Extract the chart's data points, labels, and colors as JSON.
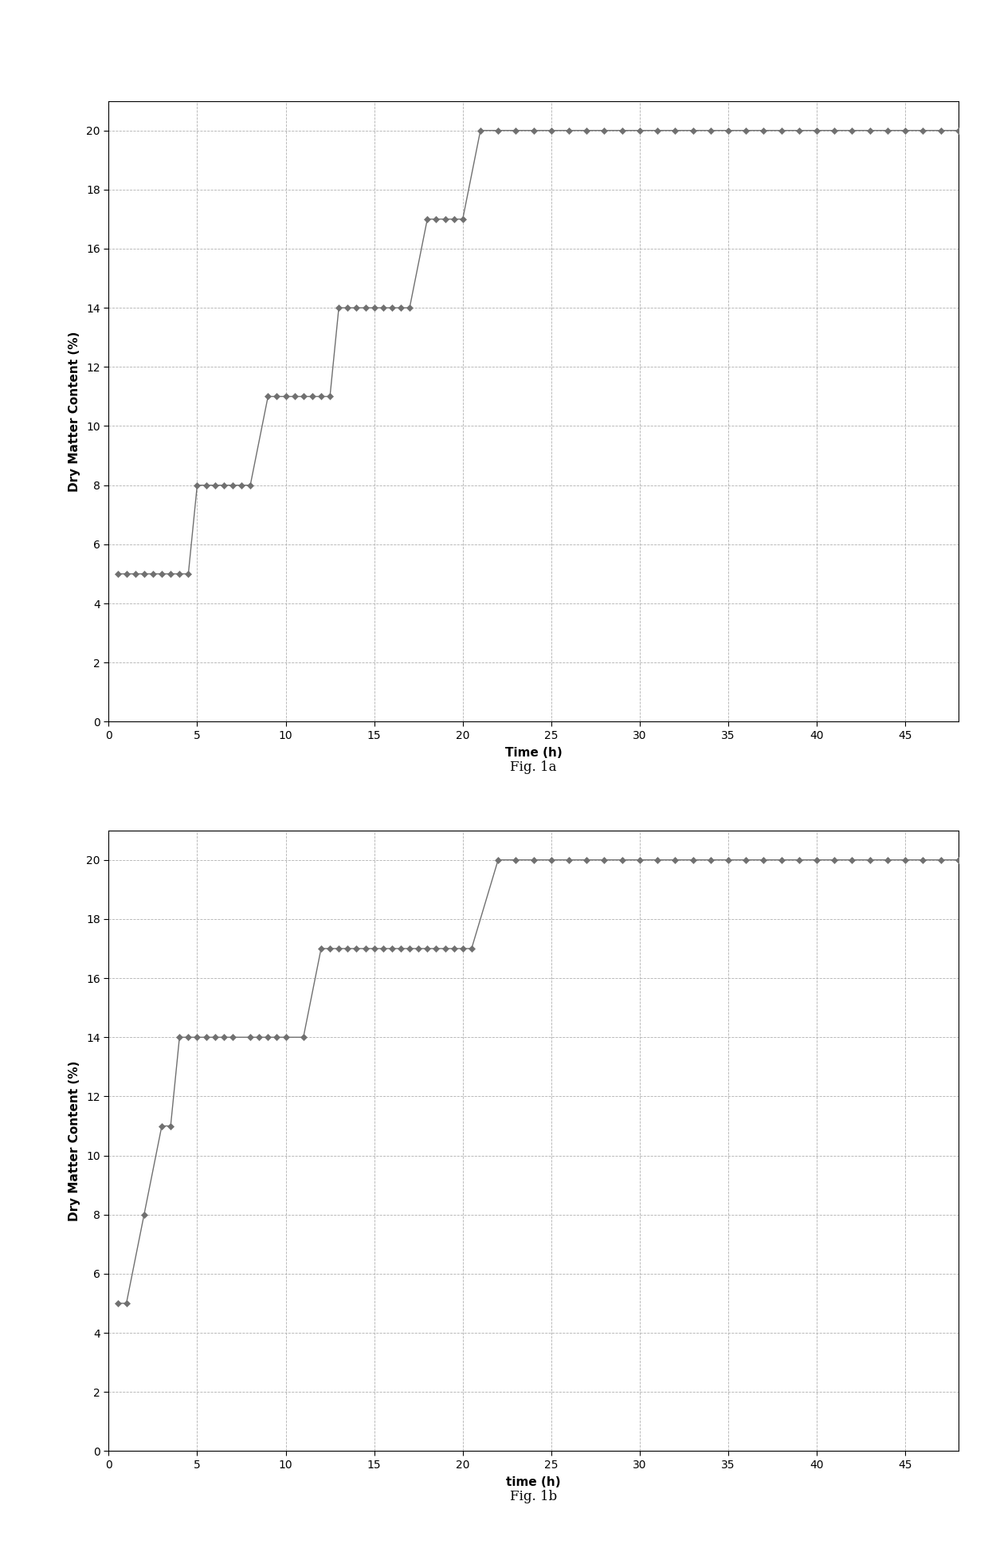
{
  "fig1a": {
    "title": "Fig. 1a",
    "xlabel": "Time (h)",
    "ylabel": "Dry Matter Content (%)",
    "xlim": [
      0,
      48
    ],
    "ylim": [
      0,
      21
    ],
    "yticks": [
      0,
      2,
      4,
      6,
      8,
      10,
      12,
      14,
      16,
      18,
      20
    ],
    "xticks": [
      0,
      5,
      10,
      15,
      20,
      25,
      30,
      35,
      40,
      45
    ],
    "data": [
      [
        0.5,
        5
      ],
      [
        1,
        5
      ],
      [
        1.5,
        5
      ],
      [
        2,
        5
      ],
      [
        2.5,
        5
      ],
      [
        3,
        5
      ],
      [
        3.5,
        5
      ],
      [
        4,
        5
      ],
      [
        4.5,
        5
      ],
      [
        5,
        8
      ],
      [
        5.5,
        8
      ],
      [
        6,
        8
      ],
      [
        6.5,
        8
      ],
      [
        7,
        8
      ],
      [
        7.5,
        8
      ],
      [
        8,
        8
      ],
      [
        9,
        11
      ],
      [
        9.5,
        11
      ],
      [
        10,
        11
      ],
      [
        10.5,
        11
      ],
      [
        11,
        11
      ],
      [
        11.5,
        11
      ],
      [
        12,
        11
      ],
      [
        12.5,
        11
      ],
      [
        13,
        14
      ],
      [
        13.5,
        14
      ],
      [
        14,
        14
      ],
      [
        14.5,
        14
      ],
      [
        15,
        14
      ],
      [
        15.5,
        14
      ],
      [
        16,
        14
      ],
      [
        16.5,
        14
      ],
      [
        17,
        14
      ],
      [
        18,
        17
      ],
      [
        18.5,
        17
      ],
      [
        19,
        17
      ],
      [
        19.5,
        17
      ],
      [
        20,
        17
      ],
      [
        21,
        20
      ],
      [
        22,
        20
      ],
      [
        23,
        20
      ],
      [
        24,
        20
      ],
      [
        25,
        20
      ],
      [
        26,
        20
      ],
      [
        27,
        20
      ],
      [
        28,
        20
      ],
      [
        29,
        20
      ],
      [
        30,
        20
      ],
      [
        31,
        20
      ],
      [
        32,
        20
      ],
      [
        33,
        20
      ],
      [
        34,
        20
      ],
      [
        35,
        20
      ],
      [
        36,
        20
      ],
      [
        37,
        20
      ],
      [
        38,
        20
      ],
      [
        39,
        20
      ],
      [
        40,
        20
      ],
      [
        41,
        20
      ],
      [
        42,
        20
      ],
      [
        43,
        20
      ],
      [
        44,
        20
      ],
      [
        45,
        20
      ],
      [
        46,
        20
      ],
      [
        47,
        20
      ],
      [
        48,
        20
      ]
    ]
  },
  "fig1b": {
    "title": "Fig. 1b",
    "xlabel": "time (h)",
    "ylabel": "Dry Matter Content (%)",
    "xlim": [
      0,
      48
    ],
    "ylim": [
      0,
      21
    ],
    "yticks": [
      0,
      2,
      4,
      6,
      8,
      10,
      12,
      14,
      16,
      18,
      20
    ],
    "xticks": [
      0,
      5,
      10,
      15,
      20,
      25,
      30,
      35,
      40,
      45
    ],
    "data": [
      [
        0.5,
        5
      ],
      [
        1,
        5
      ],
      [
        2,
        8
      ],
      [
        3,
        11
      ],
      [
        3.5,
        11
      ],
      [
        4,
        14
      ],
      [
        4.5,
        14
      ],
      [
        5,
        14
      ],
      [
        5.5,
        14
      ],
      [
        6,
        14
      ],
      [
        6.5,
        14
      ],
      [
        7,
        14
      ],
      [
        8,
        14
      ],
      [
        8.5,
        14
      ],
      [
        9,
        14
      ],
      [
        9.5,
        14
      ],
      [
        10,
        14
      ],
      [
        11,
        14
      ],
      [
        12,
        17
      ],
      [
        12.5,
        17
      ],
      [
        13,
        17
      ],
      [
        13.5,
        17
      ],
      [
        14,
        17
      ],
      [
        14.5,
        17
      ],
      [
        15,
        17
      ],
      [
        15.5,
        17
      ],
      [
        16,
        17
      ],
      [
        16.5,
        17
      ],
      [
        17,
        17
      ],
      [
        17.5,
        17
      ],
      [
        18,
        17
      ],
      [
        18.5,
        17
      ],
      [
        19,
        17
      ],
      [
        19.5,
        17
      ],
      [
        20,
        17
      ],
      [
        20.5,
        17
      ],
      [
        22,
        20
      ],
      [
        23,
        20
      ],
      [
        24,
        20
      ],
      [
        25,
        20
      ],
      [
        26,
        20
      ],
      [
        27,
        20
      ],
      [
        28,
        20
      ],
      [
        29,
        20
      ],
      [
        30,
        20
      ],
      [
        31,
        20
      ],
      [
        32,
        20
      ],
      [
        33,
        20
      ],
      [
        34,
        20
      ],
      [
        35,
        20
      ],
      [
        36,
        20
      ],
      [
        37,
        20
      ],
      [
        38,
        20
      ],
      [
        39,
        20
      ],
      [
        40,
        20
      ],
      [
        41,
        20
      ],
      [
        42,
        20
      ],
      [
        43,
        20
      ],
      [
        44,
        20
      ],
      [
        45,
        20
      ],
      [
        46,
        20
      ],
      [
        47,
        20
      ],
      [
        48,
        20
      ]
    ]
  },
  "marker_color": "#707070",
  "line_color": "#707070",
  "marker": "D",
  "marker_size": 4,
  "line_width": 1.0,
  "grid_color": "#b0b0b0",
  "grid_linestyle": "--",
  "grid_linewidth": 0.6,
  "bg_color": "#ffffff",
  "border_color": "#000000",
  "caption_fontsize": 12,
  "axis_label_fontsize": 11,
  "tick_fontsize": 10
}
